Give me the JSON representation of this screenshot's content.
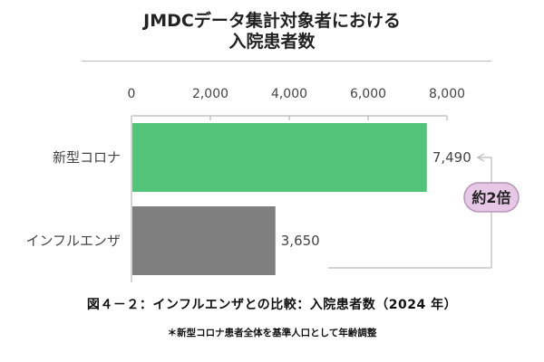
{
  "title_lines": [
    "JMDCデータ集計対象者における",
    "入院患者数"
  ],
  "chart_data": {
    "type": "bar",
    "orientation": "horizontal",
    "categories": [
      "新型コロナ",
      "インフルエンザ"
    ],
    "values": [
      7490,
      3650
    ],
    "value_labels": [
      "7,490",
      "3,650"
    ],
    "bar_colors": [
      "#52c47a",
      "#7f7f7f"
    ],
    "xlim": [
      0,
      8000
    ],
    "xticks": [
      0,
      2000,
      4000,
      6000,
      8000
    ],
    "xtick_labels": [
      "0",
      "2,000",
      "4,000",
      "6,000",
      "8,000"
    ],
    "axis_position": "top",
    "grid": false,
    "annotation": {
      "text": "約2倍",
      "color": "#e6c8e6"
    }
  },
  "caption": "図４－２：インフルエンザとの比較：入院患者数（2024 年）",
  "note": "＊新型コロナ患者全体を基準人口として年齢調整"
}
